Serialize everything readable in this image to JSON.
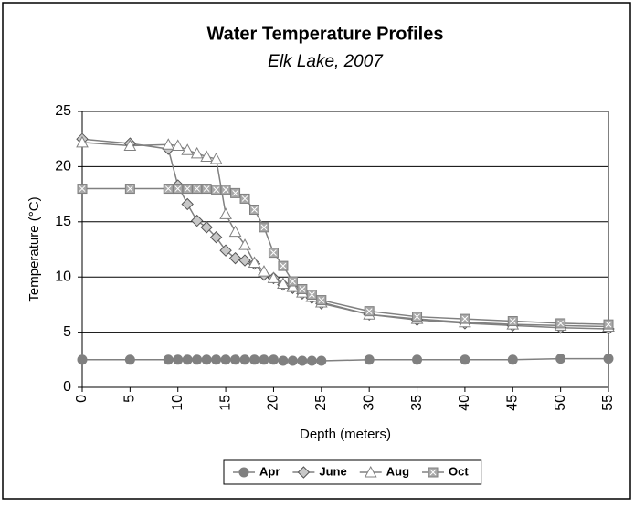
{
  "chart_data": {
    "type": "line",
    "title": "Water Temperature Profiles",
    "subtitle": "Elk Lake, 2007",
    "x_label": "Depth (meters)",
    "y_label": "Temperature (°C)",
    "x": [
      0,
      5,
      9,
      10,
      11,
      12,
      13,
      14,
      15,
      16,
      17,
      18,
      19,
      20,
      21,
      22,
      23,
      24,
      25,
      30,
      35,
      40,
      45,
      50,
      55
    ],
    "series": [
      {
        "name": "Apr",
        "color": "#808080",
        "marker": "circle",
        "values": [
          2.5,
          2.5,
          2.5,
          2.5,
          2.5,
          2.5,
          2.5,
          2.5,
          2.5,
          2.5,
          2.5,
          2.5,
          2.5,
          2.5,
          2.4,
          2.4,
          2.4,
          2.4,
          2.4,
          2.5,
          2.5,
          2.5,
          2.5,
          2.6,
          2.6
        ]
      },
      {
        "name": "June",
        "color": "#808080",
        "marker": "diamond",
        "values": [
          22.5,
          22.1,
          21.6,
          18.3,
          16.6,
          15.1,
          14.5,
          13.6,
          12.4,
          11.7,
          11.5,
          11.2,
          10.2,
          9.9,
          9.3,
          9.0,
          8.5,
          8.1,
          7.6,
          6.6,
          6.1,
          5.8,
          5.6,
          5.4,
          5.3
        ]
      },
      {
        "name": "Aug",
        "color": "#808080",
        "marker": "triangle",
        "values": [
          22.2,
          21.9,
          22.0,
          21.9,
          21.5,
          21.2,
          20.9,
          20.7,
          15.7,
          14.1,
          12.9,
          11.3,
          10.5,
          9.9,
          9.4,
          9.1,
          8.6,
          8.2,
          7.7,
          6.6,
          6.2,
          5.9,
          5.7,
          5.6,
          5.5
        ]
      },
      {
        "name": "Oct",
        "color": "#808080",
        "marker": "xsquare",
        "values": [
          18.0,
          18.0,
          18.0,
          18.0,
          18.0,
          18.0,
          18.0,
          17.9,
          17.9,
          17.6,
          17.1,
          16.1,
          14.5,
          12.2,
          11.0,
          9.6,
          8.9,
          8.4,
          7.9,
          6.9,
          6.4,
          6.2,
          6.0,
          5.8,
          5.7
        ]
      }
    ],
    "xlim": [
      0,
      55
    ],
    "xticks": [
      0,
      5,
      10,
      15,
      20,
      25,
      30,
      35,
      40,
      45,
      50,
      55
    ],
    "ylim": [
      0,
      25
    ],
    "yticks": [
      0,
      5,
      10,
      15,
      20,
      25
    ],
    "grid": true,
    "legend": "bottom"
  }
}
